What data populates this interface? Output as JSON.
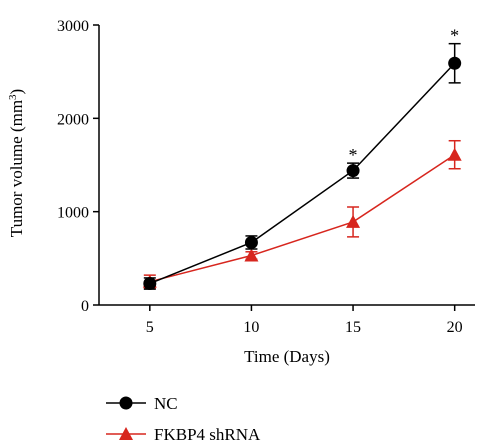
{
  "chart_data": {
    "type": "line",
    "xlabel": "Time (Days)",
    "ylabel_main": "Tumor volume (mm",
    "ylabel_sup": "3",
    "ylabel_close": ")",
    "x_ticks": [
      5,
      10,
      15,
      20
    ],
    "x_tick_labels": [
      "5",
      "10",
      "15",
      "20"
    ],
    "xlim": [
      2.5,
      21
    ],
    "y_ticks": [
      0,
      1000,
      2000,
      3000
    ],
    "y_tick_labels": [
      "0",
      "1000",
      "2000",
      "3000"
    ],
    "ylim": [
      0,
      3000
    ],
    "grid": false,
    "legend_position": "bottom-left",
    "series": [
      {
        "name": "NC",
        "color": "#000000",
        "marker": "circle",
        "x": [
          5,
          10,
          15,
          20
        ],
        "y": [
          230,
          670,
          1440,
          2590
        ],
        "error": [
          60,
          70,
          80,
          210
        ]
      },
      {
        "name": "FKBP4 shRNA",
        "color": "#d7261e",
        "marker": "triangle",
        "x": [
          5,
          10,
          15,
          20
        ],
        "y": [
          250,
          530,
          890,
          1610
        ],
        "error": [
          70,
          40,
          160,
          150
        ]
      }
    ],
    "annotations": [
      {
        "x": 15,
        "text": "*"
      },
      {
        "x": 20,
        "text": "*"
      }
    ]
  }
}
